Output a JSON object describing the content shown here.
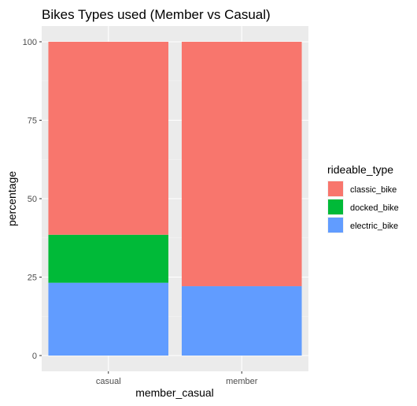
{
  "chart_data": {
    "type": "bar",
    "stacked": true,
    "title": "Bikes Types used (Member vs Casual)",
    "xlabel": "member_casual",
    "ylabel": "percentage",
    "categories": [
      "casual",
      "member"
    ],
    "ylim": [
      0,
      100
    ],
    "yticks": [
      "0",
      "25",
      "50",
      "75",
      "100"
    ],
    "legend_title": "rideable_type",
    "legend_position": "right",
    "grid": true,
    "series": [
      {
        "name": "classic_bike",
        "color": "#F8766D",
        "values": [
          61.5,
          77.9
        ]
      },
      {
        "name": "docked_bike",
        "color": "#00BA38",
        "values": [
          15.3,
          0
        ]
      },
      {
        "name": "electric_bike",
        "color": "#619CFF",
        "values": [
          23.2,
          22.1
        ]
      }
    ]
  }
}
